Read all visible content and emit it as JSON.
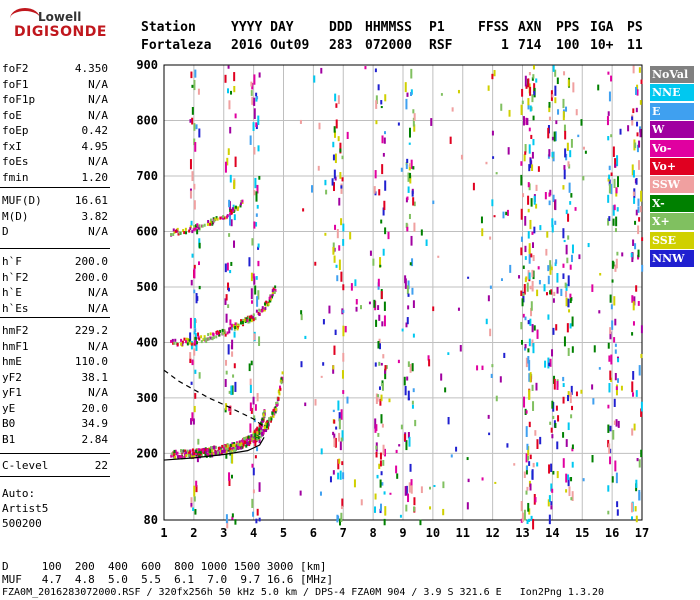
{
  "logo": {
    "line1": "Lowell",
    "line2": "DIGISONDE"
  },
  "header": {
    "station_label": "Station",
    "station_value": "Fortaleza",
    "date_label": "YYYY DAY",
    "date_value": "2016 Out09",
    "doy_label": "DDD",
    "doy_value": "283",
    "time_label": "HHMMSS",
    "time_value": "072000",
    "p1_label": "P1",
    "p1_value": "RSF",
    "ffs_label": "FFS",
    "ffs_value": "",
    "s_label": "S",
    "s_value": "1",
    "axn_label": "AXN",
    "axn_value": "714",
    "pps_label": "PPS",
    "pps_value": "100",
    "iga_label": "IGA",
    "iga_value": "10+",
    "ps_label": "PS",
    "ps_value": "11"
  },
  "params": {
    "group1": [
      {
        "name": "foF2",
        "value": "4.350"
      },
      {
        "name": "foF1",
        "value": "N/A"
      },
      {
        "name": "foF1p",
        "value": "N/A"
      },
      {
        "name": "foE",
        "value": "N/A"
      },
      {
        "name": "foEp",
        "value": "0.42"
      },
      {
        "name": "fxI",
        "value": "4.95"
      },
      {
        "name": "foEs",
        "value": "N/A"
      },
      {
        "name": "fmin",
        "value": "1.20"
      }
    ],
    "group2": [
      {
        "name": "MUF(D)",
        "value": "16.61"
      },
      {
        "name": "M(D)",
        "value": "3.82"
      },
      {
        "name": "D",
        "value": "N/A"
      }
    ],
    "group3": [
      {
        "name": "h`F",
        "value": "200.0"
      },
      {
        "name": "h`F2",
        "value": "200.0"
      },
      {
        "name": "h`E",
        "value": "N/A"
      },
      {
        "name": "h`Es",
        "value": "N/A"
      }
    ],
    "group4": [
      {
        "name": "hmF2",
        "value": "229.2"
      },
      {
        "name": "hmF1",
        "value": "N/A"
      },
      {
        "name": "hmE",
        "value": "110.0"
      },
      {
        "name": "yF2",
        "value": "38.1"
      },
      {
        "name": "yF1",
        "value": "N/A"
      },
      {
        "name": "yE",
        "value": "20.0"
      },
      {
        "name": "B0",
        "value": "34.9"
      },
      {
        "name": "B1",
        "value": "2.84"
      }
    ],
    "group5": [
      {
        "name": "C-level",
        "value": "22"
      }
    ],
    "auto": {
      "line1": "Auto:",
      "line2": "Artist5",
      "line3": "500200"
    }
  },
  "legend": [
    {
      "label": "NoVal",
      "color": "#808080"
    },
    {
      "label": "NNE",
      "color": "#00c8f0"
    },
    {
      "label": "E",
      "color": "#3fa0f0"
    },
    {
      "label": "W",
      "color": "#a000a0"
    },
    {
      "label": "Vo-",
      "color": "#e000a0"
    },
    {
      "label": "Vo+",
      "color": "#e00020"
    },
    {
      "label": "SSW",
      "color": "#f0a0a0"
    },
    {
      "label": "X-",
      "color": "#008000"
    },
    {
      "label": "X+",
      "color": "#80c060"
    },
    {
      "label": "SSE",
      "color": "#d0d000"
    },
    {
      "label": "NNW",
      "color": "#2020d0"
    }
  ],
  "footer": {
    "d_row": "D     100  200  400  600  800 1000 1500 3000 [km]",
    "muf_row": "MUF   4.7  4.8  5.0  5.5  6.1  7.0  9.7 16.6 [MHz]",
    "file_row": "FZA0M_2016283072000.RSF / 320fx256h 50 kHz 5.0 km / DPS-4 FZA0M 904 / 3.9 S 321.6 E   Ion2Png 1.3.20"
  },
  "chart_data": {
    "type": "scatter",
    "xlim": [
      1,
      17
    ],
    "ylim": [
      80,
      900
    ],
    "x_ticks": [
      1,
      2,
      3,
      4,
      5,
      6,
      7,
      8,
      9,
      10,
      11,
      12,
      13,
      14,
      15,
      16,
      17
    ],
    "y_ticks": [
      80,
      200,
      300,
      400,
      500,
      600,
      700,
      800,
      900
    ],
    "grid": true,
    "legend_placement": "right",
    "traces": {
      "f2_o_trace": {
        "x": [
          1.2,
          2.0,
          2.5,
          3.0,
          3.5,
          3.9,
          4.2,
          4.35
        ],
        "y": [
          200,
          202,
          205,
          210,
          218,
          230,
          248,
          280
        ]
      },
      "f2_x_trace": {
        "x": [
          1.7,
          2.5,
          3.0,
          3.5,
          4.0,
          4.4,
          4.7,
          4.95
        ],
        "y": [
          200,
          205,
          210,
          218,
          230,
          250,
          280,
          345
        ]
      },
      "multihop_2": {
        "x": [
          1.2,
          2.0,
          2.5,
          3.0,
          3.5,
          4.0,
          4.4,
          4.7
        ],
        "y": [
          400,
          405,
          412,
          420,
          435,
          450,
          470,
          500
        ]
      },
      "multihop_3": {
        "x": [
          1.2,
          1.8,
          2.2,
          2.6,
          3.0,
          3.3,
          3.6
        ],
        "y": [
          600,
          605,
          612,
          620,
          630,
          640,
          655
        ]
      },
      "profile_solid": {
        "x": [
          1.0,
          2.0,
          3.0,
          3.8,
          4.2,
          4.35
        ],
        "y": [
          188,
          192,
          198,
          205,
          215,
          229
        ]
      },
      "profile_dashed": {
        "x": [
          1.0,
          1.5,
          2.0,
          2.5,
          3.0,
          3.5,
          4.0,
          4.3
        ],
        "y": [
          350,
          330,
          315,
          300,
          288,
          275,
          262,
          250
        ]
      }
    },
    "noise_columns_x": [
      2.0,
      3.2,
      4.0,
      6.8,
      8.2,
      9.2,
      13.1,
      13.3,
      14.0,
      14.5,
      16.0,
      16.8
    ]
  }
}
